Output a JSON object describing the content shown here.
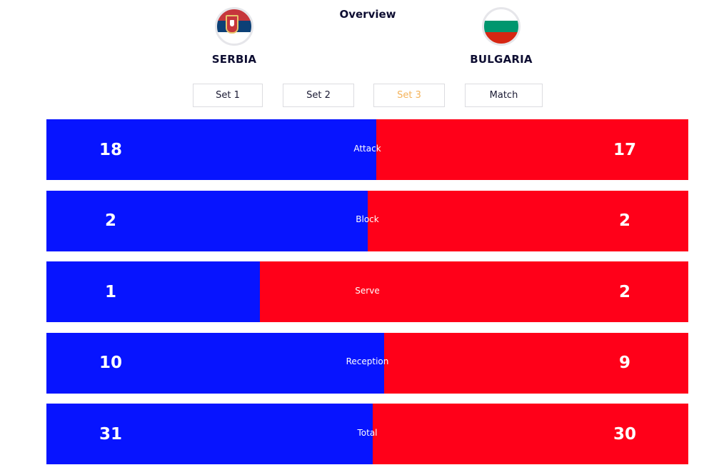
{
  "header": {
    "title": "Overview"
  },
  "teams": {
    "home": {
      "name": "SERBIA",
      "flag_icon": "serbia-flag-icon"
    },
    "away": {
      "name": "BULGARIA",
      "flag_icon": "bulgaria-flag-icon"
    }
  },
  "tabs": [
    {
      "label": "Set 1",
      "active": false
    },
    {
      "label": "Set 2",
      "active": false
    },
    {
      "label": "Set 3",
      "active": true
    },
    {
      "label": "Match",
      "active": false
    }
  ],
  "colors": {
    "home_bar": "#0714ff",
    "away_bar": "#ff0019",
    "active_tab": "#f4b35b"
  },
  "stats": [
    {
      "label": "Attack",
      "home": "18",
      "away": "17",
      "home_share": 0.514
    },
    {
      "label": "Block",
      "home": "2",
      "away": "2",
      "home_share": 0.5
    },
    {
      "label": "Serve",
      "home": "1",
      "away": "2",
      "home_share": 0.333
    },
    {
      "label": "Reception",
      "home": "10",
      "away": "9",
      "home_share": 0.526
    },
    {
      "label": "Total",
      "home": "31",
      "away": "30",
      "home_share": 0.508
    }
  ]
}
